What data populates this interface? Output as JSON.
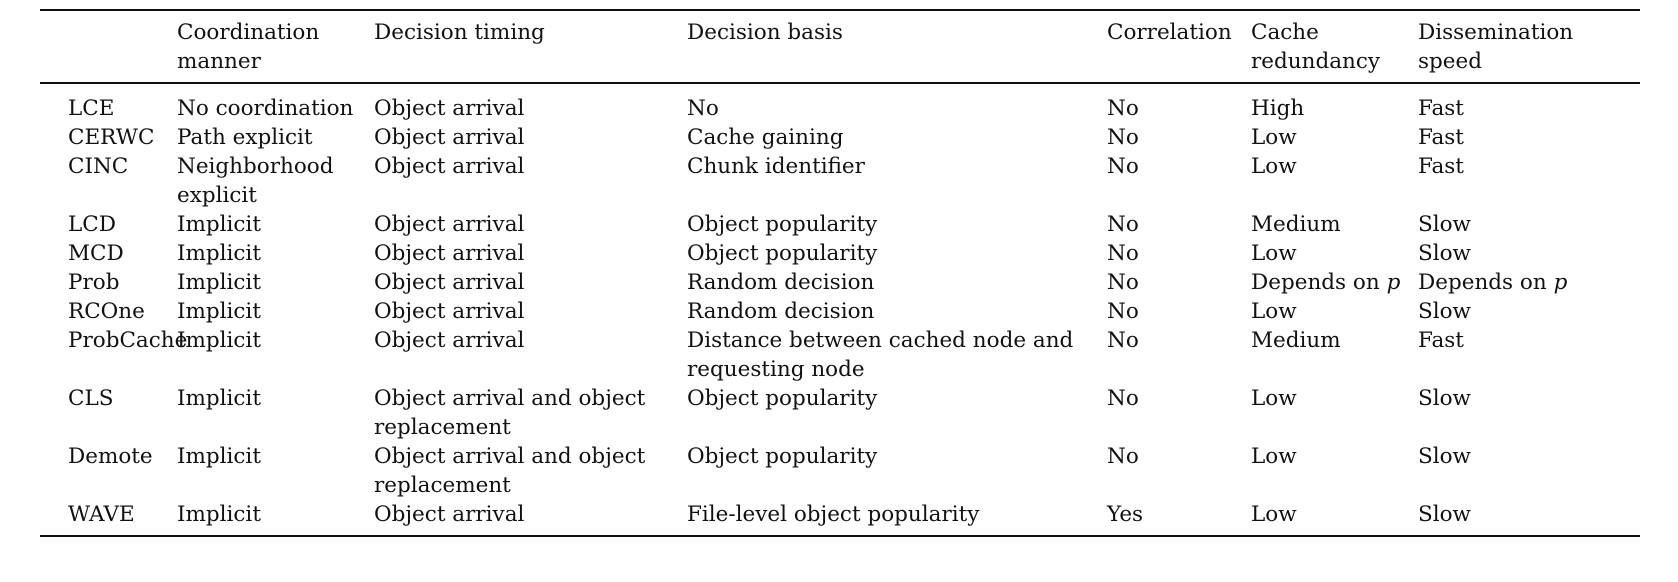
{
  "table": {
    "columns": [
      "",
      "Coordination manner",
      "Decision timing",
      "Decision basis",
      "Correlation",
      "Cache redundancy",
      "Dissemination speed"
    ],
    "rows": [
      [
        "LCE",
        "No coordination",
        "Object arrival",
        "No",
        "No",
        "High",
        "Fast"
      ],
      [
        "CERWC",
        "Path explicit",
        "Object arrival",
        "Cache gaining",
        "No",
        "Low",
        "Fast"
      ],
      [
        "CINC",
        "Neighborhood explicit",
        "Object arrival",
        "Chunk identifier",
        "No",
        "Low",
        "Fast"
      ],
      [
        "LCD",
        "Implicit",
        "Object arrival",
        "Object popularity",
        "No",
        "Medium",
        "Slow"
      ],
      [
        "MCD",
        "Implicit",
        "Object arrival",
        "Object popularity",
        "No",
        "Low",
        "Slow"
      ],
      [
        "Prob",
        "Implicit",
        "Object arrival",
        "Random decision",
        "No",
        "Depends on p",
        "Depends on p"
      ],
      [
        "RCOne",
        "Implicit",
        "Object arrival",
        "Random decision",
        "No",
        "Low",
        "Slow"
      ],
      [
        "ProbCache",
        "Implicit",
        "Object arrival",
        "Distance between cached node and requesting node",
        "No",
        "Medium",
        "Fast"
      ],
      [
        "CLS",
        "Implicit",
        "Object arrival and object replacement",
        "Object popularity",
        "No",
        "Low",
        "Slow"
      ],
      [
        "Demote",
        "Implicit",
        "Object arrival and object replacement",
        "Object popularity",
        "No",
        "Low",
        "Slow"
      ],
      [
        "WAVE",
        "Implicit",
        "Object arrival",
        "File-level object popularity",
        "Yes",
        "Low",
        "Slow"
      ]
    ]
  }
}
